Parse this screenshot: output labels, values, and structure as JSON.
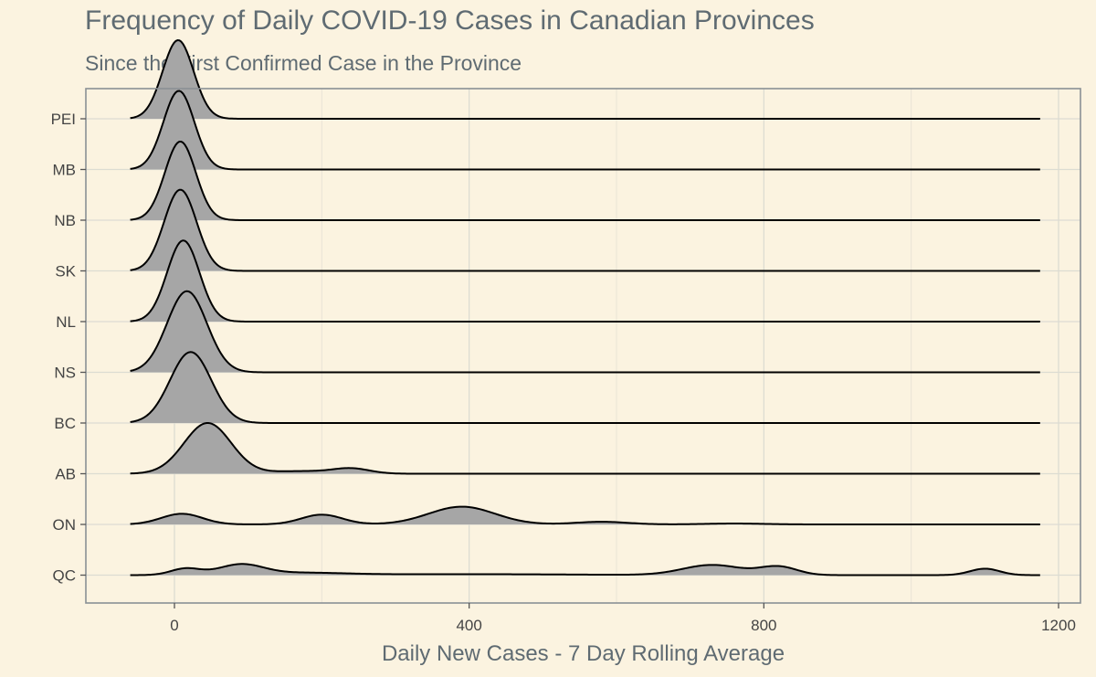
{
  "chart_data": {
    "type": "ridgeline",
    "title": "Frequency of Daily COVID-19 Cases in Canadian Provinces",
    "subtitle": "Since the First Confirmed Case in the Province",
    "xlabel": "Daily New Cases - 7 Day Rolling Average",
    "ylabel": "",
    "xlim": [
      -120,
      1225
    ],
    "x_ticks": [
      0,
      400,
      800,
      1200
    ],
    "x_tick_labels": [
      "0",
      "400",
      "800",
      "1200"
    ],
    "grid": true,
    "legend": "none",
    "fill_color": "#a6a6a6",
    "line_color": "#000000",
    "background_color": "#fbf3e0",
    "density_range": [
      -60,
      1175
    ],
    "categories": [
      "QC",
      "ON",
      "AB",
      "BC",
      "NS",
      "NL",
      "SK",
      "NB",
      "MB",
      "PEI"
    ],
    "series": [
      {
        "province": "QC",
        "peak_height_rows": 0.22,
        "components": [
          [
            15,
            20,
            0.35
          ],
          [
            90,
            30,
            0.55
          ],
          [
            170,
            60,
            0.12
          ],
          [
            400,
            150,
            0.05
          ],
          [
            730,
            40,
            0.55
          ],
          [
            820,
            25,
            0.45
          ],
          [
            1100,
            20,
            0.35
          ]
        ]
      },
      {
        "province": "ON",
        "peak_height_rows": 0.35,
        "components": [
          [
            10,
            28,
            0.6
          ],
          [
            200,
            28,
            0.55
          ],
          [
            390,
            45,
            1.0
          ],
          [
            580,
            35,
            0.15
          ],
          [
            760,
            40,
            0.05
          ]
        ]
      },
      {
        "province": "AB",
        "peak_height_rows": 1.0,
        "components": [
          [
            45,
            32,
            1.0
          ],
          [
            170,
            40,
            0.05
          ],
          [
            240,
            25,
            0.1
          ]
        ]
      },
      {
        "province": "BC",
        "peak_height_rows": 1.4,
        "components": [
          [
            22,
            28,
            1.0
          ]
        ]
      },
      {
        "province": "NS",
        "peak_height_rows": 1.6,
        "components": [
          [
            17,
            27,
            1.0
          ]
        ]
      },
      {
        "province": "NL",
        "peak_height_rows": 1.6,
        "components": [
          [
            12,
            22,
            1.0
          ]
        ]
      },
      {
        "province": "SK",
        "peak_height_rows": 1.6,
        "components": [
          [
            8,
            22,
            1.0
          ]
        ]
      },
      {
        "province": "NB",
        "peak_height_rows": 1.55,
        "components": [
          [
            8,
            21,
            1.0
          ]
        ]
      },
      {
        "province": "MB",
        "peak_height_rows": 1.55,
        "components": [
          [
            6,
            21,
            1.0
          ]
        ]
      },
      {
        "province": "PEI",
        "peak_height_rows": 1.55,
        "components": [
          [
            5,
            21,
            1.0
          ]
        ]
      }
    ]
  }
}
